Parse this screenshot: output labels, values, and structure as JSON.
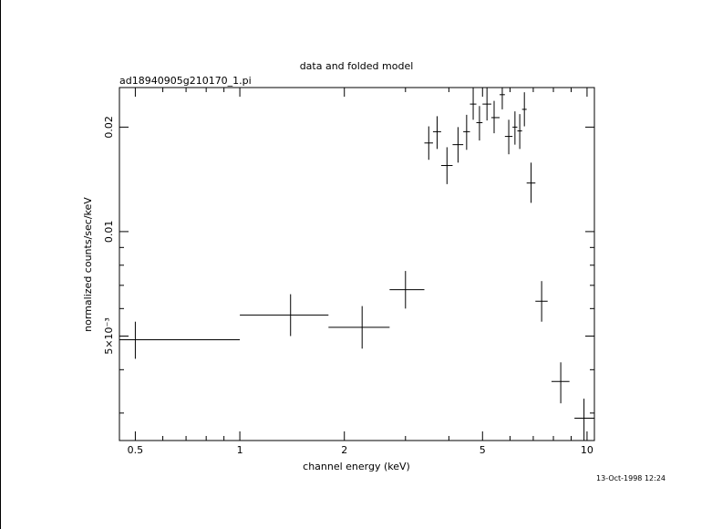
{
  "chart_data": {
    "type": "scatter",
    "title": "data and folded model",
    "subtitle": "ad18940905g210170_1.pi",
    "xlabel": "channel energy (keV)",
    "ylabel": "normalized counts/sec/keV",
    "x_scale": "log",
    "y_scale": "log",
    "xlim": [
      0.45,
      10.5
    ],
    "ylim": [
      0.0025,
      0.026
    ],
    "x_ticks": [
      {
        "value": 0.5,
        "label": "0.5"
      },
      {
        "value": 1,
        "label": "1"
      },
      {
        "value": 2,
        "label": "2"
      },
      {
        "value": 5,
        "label": "5"
      },
      {
        "value": 10,
        "label": "10"
      }
    ],
    "y_ticks": [
      {
        "value": 0.005,
        "label": "5×10⁻³"
      },
      {
        "value": 0.01,
        "label": "0.01"
      },
      {
        "value": 0.02,
        "label": "0.02"
      }
    ],
    "timestamp": "13-Oct-1998 12:24",
    "points": [
      {
        "x": 0.5,
        "xlo": 0.45,
        "xhi": 1.0,
        "y": 0.00488,
        "ylo": 0.0043,
        "yhi": 0.0055
      },
      {
        "x": 1.4,
        "xlo": 1.0,
        "xhi": 1.8,
        "y": 0.00575,
        "ylo": 0.005,
        "yhi": 0.0066
      },
      {
        "x": 2.25,
        "xlo": 1.8,
        "xhi": 2.7,
        "y": 0.0053,
        "ylo": 0.0046,
        "yhi": 0.0061
      },
      {
        "x": 3.0,
        "xlo": 2.7,
        "xhi": 3.4,
        "y": 0.0068,
        "ylo": 0.006,
        "yhi": 0.0077
      },
      {
        "x": 3.5,
        "xlo": 3.4,
        "xhi": 3.6,
        "y": 0.018,
        "ylo": 0.0161,
        "yhi": 0.0201
      },
      {
        "x": 3.7,
        "xlo": 3.6,
        "xhi": 3.8,
        "y": 0.0194,
        "ylo": 0.0173,
        "yhi": 0.0215
      },
      {
        "x": 3.95,
        "xlo": 3.8,
        "xhi": 4.1,
        "y": 0.0155,
        "ylo": 0.0137,
        "yhi": 0.0175
      },
      {
        "x": 4.25,
        "xlo": 4.1,
        "xhi": 4.4,
        "y": 0.0178,
        "ylo": 0.0158,
        "yhi": 0.02
      },
      {
        "x": 4.5,
        "xlo": 4.4,
        "xhi": 4.6,
        "y": 0.0194,
        "ylo": 0.0172,
        "yhi": 0.0217
      },
      {
        "x": 4.7,
        "xlo": 4.6,
        "xhi": 4.8,
        "y": 0.0233,
        "ylo": 0.021,
        "yhi": 0.026
      },
      {
        "x": 4.9,
        "xlo": 4.8,
        "xhi": 5.0,
        "y": 0.0206,
        "ylo": 0.0183,
        "yhi": 0.023
      },
      {
        "x": 5.15,
        "xlo": 5.0,
        "xhi": 5.3,
        "y": 0.0233,
        "ylo": 0.0209,
        "yhi": 0.026
      },
      {
        "x": 5.4,
        "xlo": 5.3,
        "xhi": 5.6,
        "y": 0.0213,
        "ylo": 0.0192,
        "yhi": 0.0238
      },
      {
        "x": 5.7,
        "xlo": 5.6,
        "xhi": 5.8,
        "y": 0.0248,
        "ylo": 0.0225,
        "yhi": 0.026
      },
      {
        "x": 5.95,
        "xlo": 5.8,
        "xhi": 6.1,
        "y": 0.0188,
        "ylo": 0.0167,
        "yhi": 0.021
      },
      {
        "x": 6.2,
        "xlo": 6.1,
        "xhi": 6.3,
        "y": 0.02,
        "ylo": 0.0178,
        "yhi": 0.0222
      },
      {
        "x": 6.4,
        "xlo": 6.3,
        "xhi": 6.5,
        "y": 0.0195,
        "ylo": 0.0173,
        "yhi": 0.0218
      },
      {
        "x": 6.6,
        "xlo": 6.5,
        "xhi": 6.7,
        "y": 0.0225,
        "ylo": 0.0201,
        "yhi": 0.0252
      },
      {
        "x": 6.9,
        "xlo": 6.7,
        "xhi": 7.1,
        "y": 0.0138,
        "ylo": 0.0121,
        "yhi": 0.0158
      },
      {
        "x": 7.4,
        "xlo": 7.1,
        "xhi": 7.7,
        "y": 0.0063,
        "ylo": 0.0055,
        "yhi": 0.0072
      },
      {
        "x": 8.4,
        "xlo": 7.9,
        "xhi": 8.9,
        "y": 0.0037,
        "ylo": 0.0032,
        "yhi": 0.0042
      },
      {
        "x": 9.8,
        "xlo": 9.2,
        "xhi": 10.5,
        "y": 0.0029,
        "ylo": 0.0025,
        "yhi": 0.0033
      }
    ]
  }
}
